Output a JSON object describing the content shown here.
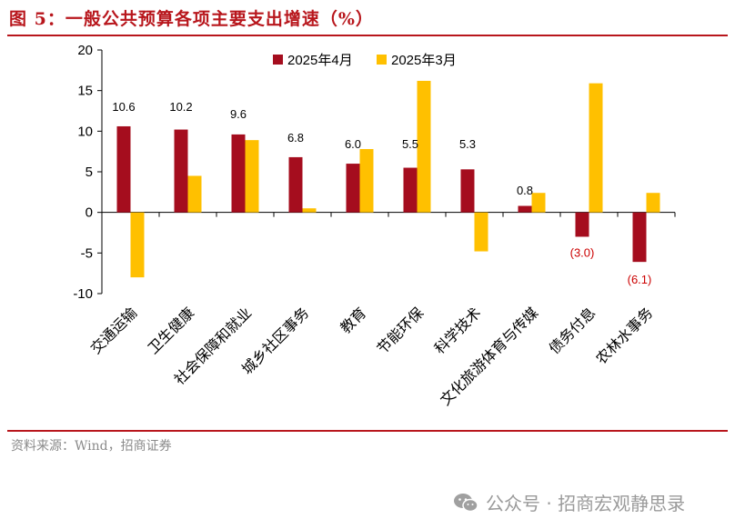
{
  "header": {
    "title": "图 5：一般公共预算各项主要支出增速（%）"
  },
  "footer": {
    "source": "资料来源：Wind，招商证券",
    "watermark": "公众号 · 招商宏观静思录"
  },
  "colors": {
    "series1": "#a50d1e",
    "series2": "#ffc000",
    "accent": "#b8161c",
    "negative_label": "#cc0000"
  },
  "chart_data": {
    "type": "bar",
    "title": "一般公共预算各项主要支出增速（%）",
    "categories": [
      "交通运输",
      "卫生健康",
      "社会保障和就业",
      "城乡社区事务",
      "教育",
      "节能环保",
      "科学技术",
      "文化旅游体育与传媒",
      "债务付息",
      "农林水事务"
    ],
    "series": [
      {
        "name": "2025年4月",
        "values": [
          10.6,
          10.2,
          9.6,
          6.8,
          6.0,
          5.5,
          5.3,
          0.8,
          -3.0,
          -6.1
        ]
      },
      {
        "name": "2025年3月",
        "values": [
          -8.0,
          4.5,
          8.9,
          0.5,
          7.8,
          16.2,
          -4.8,
          2.4,
          15.9,
          2.4
        ]
      }
    ],
    "data_labels": [
      "10.6",
      "10.2",
      "9.6",
      "6.8",
      "6.0",
      "5.5",
      "5.3",
      "0.8",
      "(3.0)",
      "(6.1)"
    ],
    "ylim": [
      -10,
      20
    ],
    "yticks": [
      -10,
      -5,
      0,
      5,
      10,
      15,
      20
    ],
    "ytick_labels": [
      "-10",
      "-5",
      "0",
      "5",
      "10",
      "15",
      "20"
    ],
    "xlabel": "",
    "ylabel": "",
    "legend": "top"
  }
}
